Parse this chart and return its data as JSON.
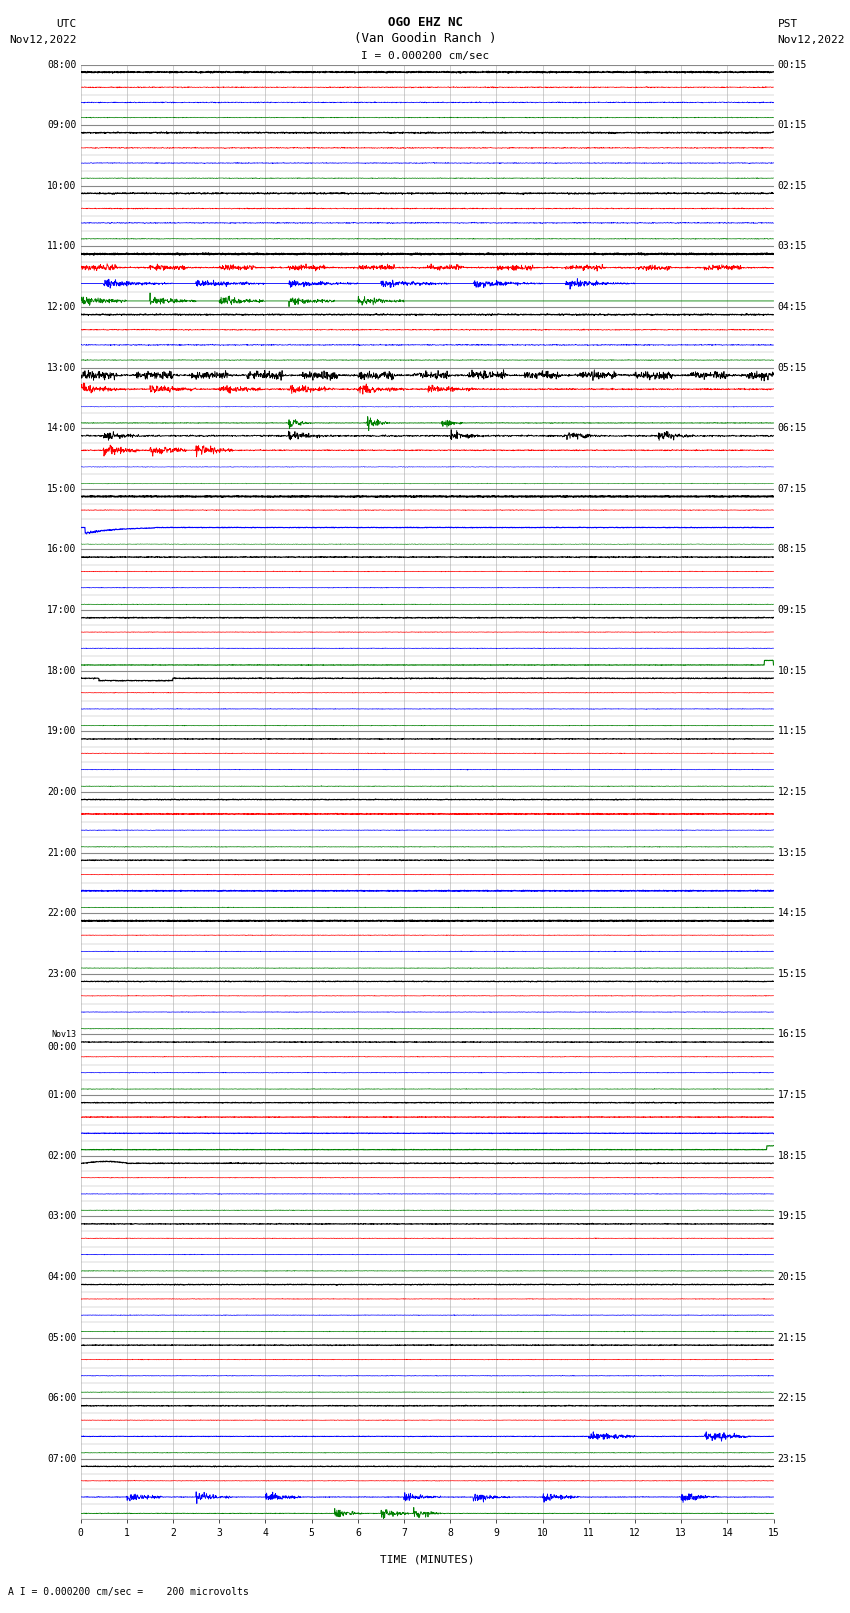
{
  "title_line1": "OGO EHZ NC",
  "title_line2": "(Van Goodin Ranch )",
  "title_line3": "I = 0.000200 cm/sec",
  "left_label_top": "UTC",
  "left_label_date": "Nov12,2022",
  "right_label_top": "PST",
  "right_label_date": "Nov12,2022",
  "bottom_label": "TIME (MINUTES)",
  "footer_text": "A I = 0.000200 cm/sec =    200 microvolts",
  "utc_times": [
    "08:00",
    "09:00",
    "10:00",
    "11:00",
    "12:00",
    "13:00",
    "14:00",
    "15:00",
    "16:00",
    "17:00",
    "18:00",
    "19:00",
    "20:00",
    "21:00",
    "22:00",
    "23:00",
    "Nov13\n00:00",
    "01:00",
    "02:00",
    "03:00",
    "04:00",
    "05:00",
    "06:00",
    "07:00"
  ],
  "pst_times": [
    "00:15",
    "01:15",
    "02:15",
    "03:15",
    "04:15",
    "05:15",
    "06:15",
    "07:15",
    "08:15",
    "09:15",
    "10:15",
    "11:15",
    "12:15",
    "13:15",
    "14:15",
    "15:15",
    "16:15",
    "17:15",
    "18:15",
    "19:15",
    "20:15",
    "21:15",
    "22:15",
    "23:15"
  ],
  "n_rows": 24,
  "bg_color": "#ffffff",
  "grid_color": "#aaaaaa",
  "trace_black": "#000000",
  "trace_red": "#ff0000",
  "trace_blue": "#0000ff",
  "trace_green": "#008000",
  "x_ticks": [
    0,
    1,
    2,
    3,
    4,
    5,
    6,
    7,
    8,
    9,
    10,
    11,
    12,
    13,
    14,
    15
  ],
  "title_fontsize": 9,
  "label_fontsize": 8,
  "tick_fontsize": 7
}
